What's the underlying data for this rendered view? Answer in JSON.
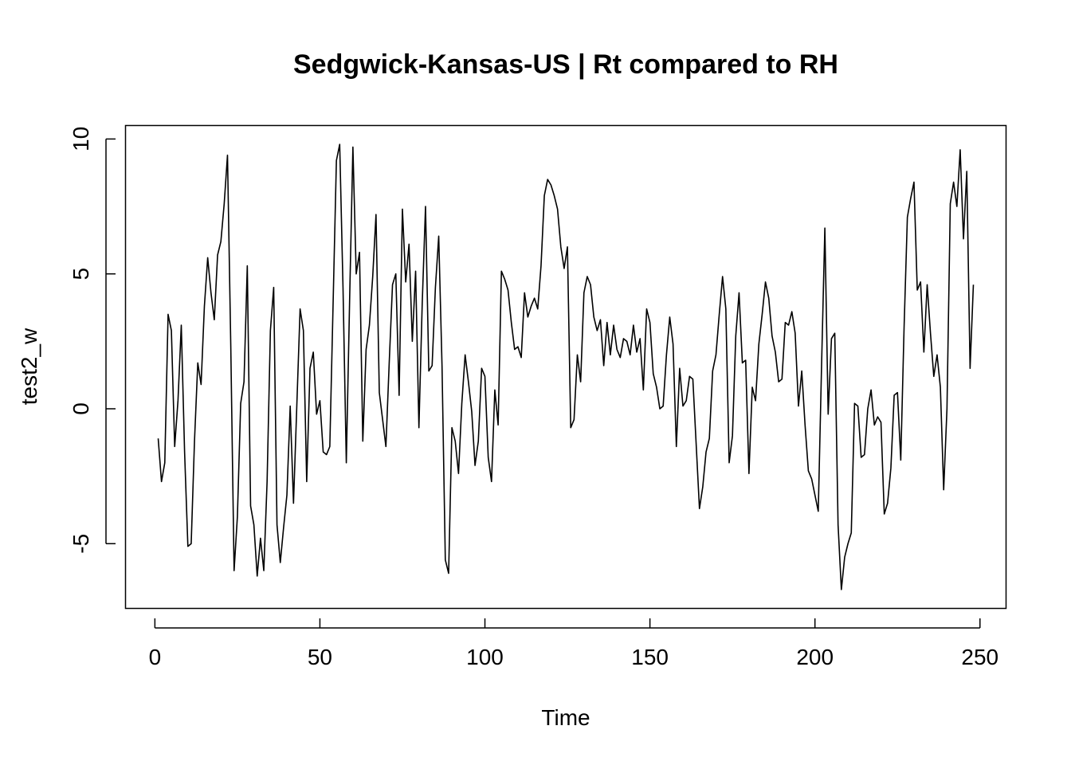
{
  "chart_data": {
    "type": "line",
    "title": "Sedgwick-Kansas-US | Rt compared to RH",
    "xlabel": "Time",
    "ylabel": "test2_w",
    "xlim": [
      -8.9,
      257.9
    ],
    "ylim": [
      -7.4,
      10.5
    ],
    "x_ticks": [
      0,
      50,
      100,
      150,
      200,
      250
    ],
    "y_ticks": [
      -5,
      0,
      5,
      10
    ],
    "grid": false,
    "legend": "none",
    "line_color": "#000000",
    "series": [
      {
        "x_start": 1,
        "values": [
          -1.1,
          -2.7,
          -2.0,
          3.5,
          2.9,
          -1.4,
          0.3,
          3.1,
          -1.6,
          -5.1,
          -5.0,
          -1.2,
          1.7,
          0.9,
          3.8,
          5.6,
          4.3,
          3.3,
          5.7,
          6.2,
          7.6,
          9.4,
          2.3,
          -6.0,
          -4.0,
          0.2,
          1.0,
          5.3,
          -3.6,
          -4.3,
          -6.2,
          -4.8,
          -6.0,
          -2.7,
          2.9,
          4.5,
          -4.3,
          -5.7,
          -4.4,
          -3.2,
          0.1,
          -3.5,
          0.1,
          3.7,
          2.9,
          -2.7,
          1.5,
          2.1,
          -0.2,
          0.3,
          -1.6,
          -1.7,
          -1.4,
          3.9,
          9.2,
          9.8,
          4.5,
          -2.0,
          4.0,
          9.7,
          5.0,
          5.8,
          -1.2,
          2.2,
          3.1,
          4.9,
          7.2,
          0.6,
          -0.4,
          -1.4,
          1.7,
          4.6,
          5.0,
          0.5,
          7.4,
          4.7,
          6.1,
          2.5,
          5.1,
          -0.7,
          3.9,
          7.5,
          1.4,
          1.6,
          4.5,
          6.4,
          1.6,
          -5.6,
          -6.1,
          -0.7,
          -1.2,
          -2.4,
          0.2,
          2.0,
          1.0,
          -0.1,
          -2.1,
          -1.2,
          1.5,
          1.2,
          -1.8,
          -2.7,
          0.7,
          -0.6,
          5.1,
          4.8,
          4.4,
          3.2,
          2.2,
          2.3,
          1.9,
          4.3,
          3.4,
          3.8,
          4.1,
          3.7,
          5.3,
          7.9,
          8.5,
          8.3,
          7.9,
          7.4,
          6.0,
          5.2,
          6.0,
          -0.7,
          -0.4,
          2.0,
          1.0,
          4.3,
          4.9,
          4.6,
          3.4,
          2.9,
          3.3,
          1.6,
          3.2,
          2.0,
          3.1,
          2.2,
          1.9,
          2.6,
          2.5,
          2.0,
          3.1,
          2.1,
          2.6,
          0.7,
          3.7,
          3.2,
          1.3,
          0.8,
          0.0,
          0.1,
          2.0,
          3.4,
          2.4,
          -1.4,
          1.5,
          0.1,
          0.3,
          1.2,
          1.1,
          -1.3,
          -3.7,
          -2.9,
          -1.6,
          -1.1,
          1.4,
          2.0,
          3.5,
          4.9,
          3.7,
          -2.0,
          -1.0,
          2.7,
          4.3,
          1.7,
          1.8,
          -2.4,
          0.8,
          0.3,
          2.4,
          3.5,
          4.7,
          4.1,
          2.7,
          2.1,
          1.0,
          1.1,
          3.2,
          3.1,
          3.6,
          2.8,
          0.1,
          1.4,
          -0.6,
          -2.3,
          -2.6,
          -3.2,
          -3.8,
          1.6,
          6.7,
          -0.2,
          2.6,
          2.8,
          -4.3,
          -6.7,
          -5.5,
          -5.0,
          -4.6,
          0.2,
          0.1,
          -1.8,
          -1.7,
          0.0,
          0.7,
          -0.6,
          -0.3,
          -0.5,
          -3.9,
          -3.5,
          -2.2,
          0.5,
          0.6,
          -1.9,
          3.0,
          7.1,
          7.8,
          8.4,
          4.4,
          4.7,
          2.1,
          4.6,
          2.8,
          1.2,
          2.0,
          0.8,
          -3.0,
          0.0,
          7.6,
          8.4,
          7.5,
          9.6,
          6.3,
          8.8,
          1.5,
          4.6
        ]
      }
    ]
  }
}
